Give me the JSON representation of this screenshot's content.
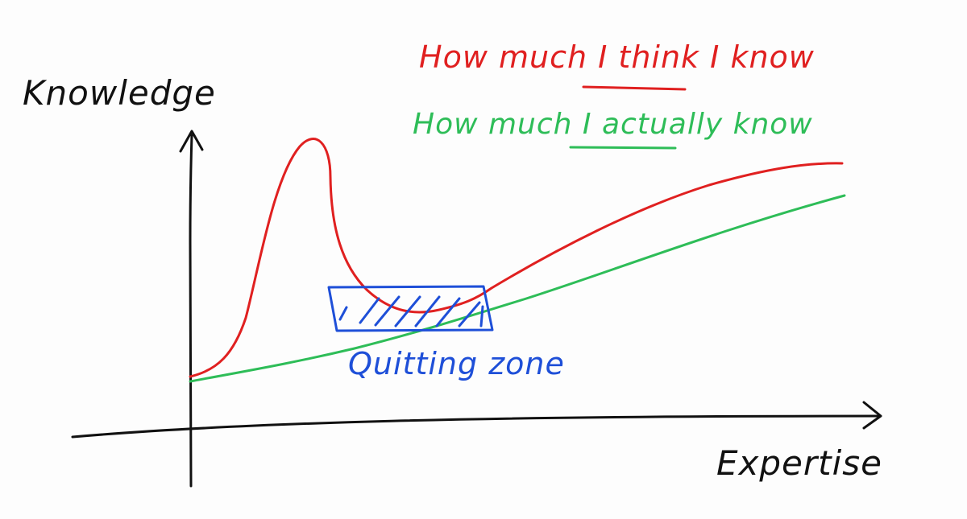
{
  "diagram": {
    "axis_y_label": "Knowledge",
    "axis_x_label": "Expertise",
    "zone_label": "Quitting zone",
    "legend": [
      {
        "key": "think",
        "prefix": "How much ",
        "emphasis": "I think",
        "suffix": " I know",
        "color": "#e02020"
      },
      {
        "key": "actual",
        "prefix": "How much ",
        "emphasis": "I actually",
        "suffix": " know",
        "color": "#2ebd58"
      }
    ],
    "colors": {
      "ink": "#111111",
      "zone": "#1e4fd8",
      "think_curve": "#e02020",
      "actual_curve": "#2ebd58"
    }
  }
}
